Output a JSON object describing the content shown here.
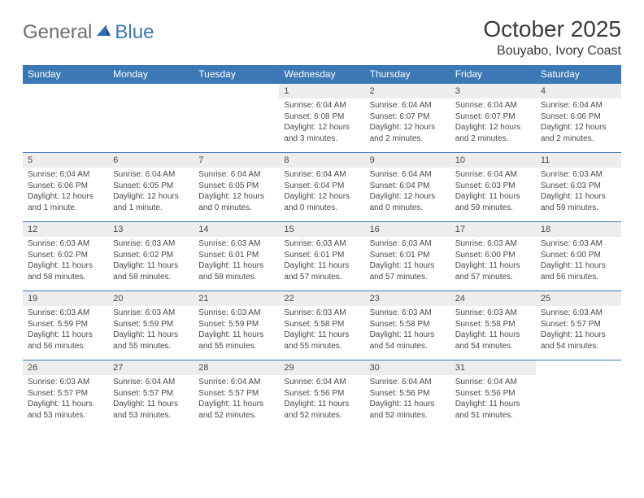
{
  "logo": {
    "general": "General",
    "blue": "Blue"
  },
  "title": "October 2025",
  "location": "Bouyabo, Ivory Coast",
  "colors": {
    "header_bg": "#3b78b5",
    "header_text": "#ffffff",
    "daynum_bg": "#ededed",
    "rule": "#3b78b5",
    "body_text": "#4a4a4a",
    "logo_gray": "#6e6e6e",
    "logo_blue": "#3b78b5"
  },
  "fonts": {
    "month_title_pt": 28,
    "location_pt": 16,
    "dayhead_pt": 12,
    "daynum_pt": 11,
    "detail_pt": 10
  },
  "day_headers": [
    "Sunday",
    "Monday",
    "Tuesday",
    "Wednesday",
    "Thursday",
    "Friday",
    "Saturday"
  ],
  "weeks": [
    [
      null,
      null,
      null,
      {
        "n": "1",
        "sunrise": "Sunrise: 6:04 AM",
        "sunset": "Sunset: 6:08 PM",
        "daylight": "Daylight: 12 hours and 3 minutes."
      },
      {
        "n": "2",
        "sunrise": "Sunrise: 6:04 AM",
        "sunset": "Sunset: 6:07 PM",
        "daylight": "Daylight: 12 hours and 2 minutes."
      },
      {
        "n": "3",
        "sunrise": "Sunrise: 6:04 AM",
        "sunset": "Sunset: 6:07 PM",
        "daylight": "Daylight: 12 hours and 2 minutes."
      },
      {
        "n": "4",
        "sunrise": "Sunrise: 6:04 AM",
        "sunset": "Sunset: 6:06 PM",
        "daylight": "Daylight: 12 hours and 2 minutes."
      }
    ],
    [
      {
        "n": "5",
        "sunrise": "Sunrise: 6:04 AM",
        "sunset": "Sunset: 6:06 PM",
        "daylight": "Daylight: 12 hours and 1 minute."
      },
      {
        "n": "6",
        "sunrise": "Sunrise: 6:04 AM",
        "sunset": "Sunset: 6:05 PM",
        "daylight": "Daylight: 12 hours and 1 minute."
      },
      {
        "n": "7",
        "sunrise": "Sunrise: 6:04 AM",
        "sunset": "Sunset: 6:05 PM",
        "daylight": "Daylight: 12 hours and 0 minutes."
      },
      {
        "n": "8",
        "sunrise": "Sunrise: 6:04 AM",
        "sunset": "Sunset: 6:04 PM",
        "daylight": "Daylight: 12 hours and 0 minutes."
      },
      {
        "n": "9",
        "sunrise": "Sunrise: 6:04 AM",
        "sunset": "Sunset: 6:04 PM",
        "daylight": "Daylight: 12 hours and 0 minutes."
      },
      {
        "n": "10",
        "sunrise": "Sunrise: 6:04 AM",
        "sunset": "Sunset: 6:03 PM",
        "daylight": "Daylight: 11 hours and 59 minutes."
      },
      {
        "n": "11",
        "sunrise": "Sunrise: 6:03 AM",
        "sunset": "Sunset: 6:03 PM",
        "daylight": "Daylight: 11 hours and 59 minutes."
      }
    ],
    [
      {
        "n": "12",
        "sunrise": "Sunrise: 6:03 AM",
        "sunset": "Sunset: 6:02 PM",
        "daylight": "Daylight: 11 hours and 58 minutes."
      },
      {
        "n": "13",
        "sunrise": "Sunrise: 6:03 AM",
        "sunset": "Sunset: 6:02 PM",
        "daylight": "Daylight: 11 hours and 58 minutes."
      },
      {
        "n": "14",
        "sunrise": "Sunrise: 6:03 AM",
        "sunset": "Sunset: 6:01 PM",
        "daylight": "Daylight: 11 hours and 58 minutes."
      },
      {
        "n": "15",
        "sunrise": "Sunrise: 6:03 AM",
        "sunset": "Sunset: 6:01 PM",
        "daylight": "Daylight: 11 hours and 57 minutes."
      },
      {
        "n": "16",
        "sunrise": "Sunrise: 6:03 AM",
        "sunset": "Sunset: 6:01 PM",
        "daylight": "Daylight: 11 hours and 57 minutes."
      },
      {
        "n": "17",
        "sunrise": "Sunrise: 6:03 AM",
        "sunset": "Sunset: 6:00 PM",
        "daylight": "Daylight: 11 hours and 57 minutes."
      },
      {
        "n": "18",
        "sunrise": "Sunrise: 6:03 AM",
        "sunset": "Sunset: 6:00 PM",
        "daylight": "Daylight: 11 hours and 56 minutes."
      }
    ],
    [
      {
        "n": "19",
        "sunrise": "Sunrise: 6:03 AM",
        "sunset": "Sunset: 5:59 PM",
        "daylight": "Daylight: 11 hours and 56 minutes."
      },
      {
        "n": "20",
        "sunrise": "Sunrise: 6:03 AM",
        "sunset": "Sunset: 5:59 PM",
        "daylight": "Daylight: 11 hours and 55 minutes."
      },
      {
        "n": "21",
        "sunrise": "Sunrise: 6:03 AM",
        "sunset": "Sunset: 5:59 PM",
        "daylight": "Daylight: 11 hours and 55 minutes."
      },
      {
        "n": "22",
        "sunrise": "Sunrise: 6:03 AM",
        "sunset": "Sunset: 5:58 PM",
        "daylight": "Daylight: 11 hours and 55 minutes."
      },
      {
        "n": "23",
        "sunrise": "Sunrise: 6:03 AM",
        "sunset": "Sunset: 5:58 PM",
        "daylight": "Daylight: 11 hours and 54 minutes."
      },
      {
        "n": "24",
        "sunrise": "Sunrise: 6:03 AM",
        "sunset": "Sunset: 5:58 PM",
        "daylight": "Daylight: 11 hours and 54 minutes."
      },
      {
        "n": "25",
        "sunrise": "Sunrise: 6:03 AM",
        "sunset": "Sunset: 5:57 PM",
        "daylight": "Daylight: 11 hours and 54 minutes."
      }
    ],
    [
      {
        "n": "26",
        "sunrise": "Sunrise: 6:03 AM",
        "sunset": "Sunset: 5:57 PM",
        "daylight": "Daylight: 11 hours and 53 minutes."
      },
      {
        "n": "27",
        "sunrise": "Sunrise: 6:04 AM",
        "sunset": "Sunset: 5:57 PM",
        "daylight": "Daylight: 11 hours and 53 minutes."
      },
      {
        "n": "28",
        "sunrise": "Sunrise: 6:04 AM",
        "sunset": "Sunset: 5:57 PM",
        "daylight": "Daylight: 11 hours and 52 minutes."
      },
      {
        "n": "29",
        "sunrise": "Sunrise: 6:04 AM",
        "sunset": "Sunset: 5:56 PM",
        "daylight": "Daylight: 11 hours and 52 minutes."
      },
      {
        "n": "30",
        "sunrise": "Sunrise: 6:04 AM",
        "sunset": "Sunset: 5:56 PM",
        "daylight": "Daylight: 11 hours and 52 minutes."
      },
      {
        "n": "31",
        "sunrise": "Sunrise: 6:04 AM",
        "sunset": "Sunset: 5:56 PM",
        "daylight": "Daylight: 11 hours and 51 minutes."
      },
      null
    ]
  ]
}
